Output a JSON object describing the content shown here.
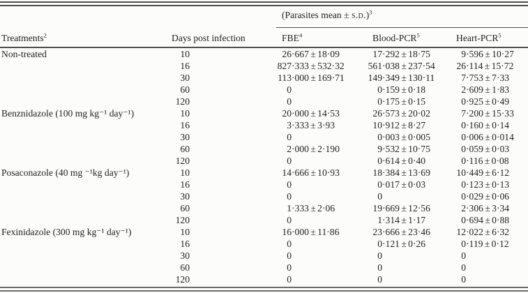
{
  "header": {
    "spanner": {
      "pre": "(Parasites mean ± ",
      "sd": "s.d.",
      "post": ")",
      "sup": "3"
    },
    "columns": {
      "treatments": {
        "label": "Treatments",
        "sup": "2"
      },
      "days": {
        "label": "Days post infection",
        "sup": ""
      },
      "fbe": {
        "label": "FBE",
        "sup": "4"
      },
      "blood": {
        "label": "Blood-PCR",
        "sup": "5"
      },
      "heart": {
        "label": "Heart-PCR",
        "sup": "5"
      }
    }
  },
  "sections": [
    {
      "treatment": "Non-treated",
      "rows": [
        {
          "days": "10",
          "fbe": "26·667 ± 18·09",
          "blood": "17·292 ± 18·75",
          "heart": "9·596 ± 10·27"
        },
        {
          "days": "16",
          "fbe": "827·333 ± 532·32",
          "blood": "561·038 ± 237·54",
          "heart": "26·114 ± 15·72"
        },
        {
          "days": "30",
          "fbe": "113·000 ± 169·71",
          "blood": "149·349 ± 130·11",
          "heart": "7·753 ± 7·33"
        },
        {
          "days": "60",
          "fbe": "0",
          "blood": "0·159 ± 0·18",
          "heart": "2·609 ± 1·83"
        },
        {
          "days": "120",
          "fbe": "0",
          "blood": "0·175 ± 0·15",
          "heart": "0·925 ± 0·49"
        }
      ]
    },
    {
      "treatment": "Benznidazole (100 mg kg⁻¹ day⁻¹)",
      "rows": [
        {
          "days": "10",
          "fbe": "20·000 ± 14·53",
          "blood": "26·573 ± 20·02",
          "heart": "7·200 ± 15·33"
        },
        {
          "days": "16",
          "fbe": "3·333 ± 3·93",
          "blood": "10·912 ± 8·27",
          "heart": "0·160 ± 0·14"
        },
        {
          "days": "30",
          "fbe": "0",
          "blood": "0·003 ± 0·005",
          "heart": "0·006 ± 0·014"
        },
        {
          "days": "60",
          "fbe": "2·000 ± 2·190",
          "blood": "9·532 ± 10·75",
          "heart": "0·059 ± 0·03"
        },
        {
          "days": "120",
          "fbe": "0",
          "blood": "0·614 ± 0·40",
          "heart": "0·116 ± 0·08"
        }
      ]
    },
    {
      "treatment": "Posaconazole (40 mg ⁻¹kg day⁻¹)",
      "rows": [
        {
          "days": "10",
          "fbe": "14·666 ± 10·93",
          "blood": "18·384 ± 13·69",
          "heart": "10·449 ± 6·12"
        },
        {
          "days": "16",
          "fbe": "0",
          "blood": "0·017 ± 0·03",
          "heart": "0·123 ± 0·13"
        },
        {
          "days": "30",
          "fbe": "0",
          "blood": "0",
          "heart": "0·029 ± 0·06"
        },
        {
          "days": "60",
          "fbe": "1·333 ± 2·06",
          "blood": "19·669 ± 12·56",
          "heart": "2·306 ± 3·34"
        },
        {
          "days": "120",
          "fbe": "0",
          "blood": "1·314 ± 1·17",
          "heart": "0·694 ± 0·88"
        }
      ]
    },
    {
      "treatment": "Fexinidazole (300 mg kg⁻¹ day⁻¹)",
      "rows": [
        {
          "days": "10",
          "fbe": "16·000 ± 11·86",
          "blood": "23·666 ± 23·46",
          "heart": "12·022 ± 6·32"
        },
        {
          "days": "16",
          "fbe": "0",
          "blood": "0·121 ± 0·26",
          "heart": "0·119 ± 0·12"
        },
        {
          "days": "30",
          "fbe": "0",
          "blood": "0",
          "heart": "0"
        },
        {
          "days": "60",
          "fbe": "0",
          "blood": "0",
          "heart": "0"
        },
        {
          "days": "120",
          "fbe": "0",
          "blood": "0",
          "heart": "0"
        }
      ]
    }
  ]
}
